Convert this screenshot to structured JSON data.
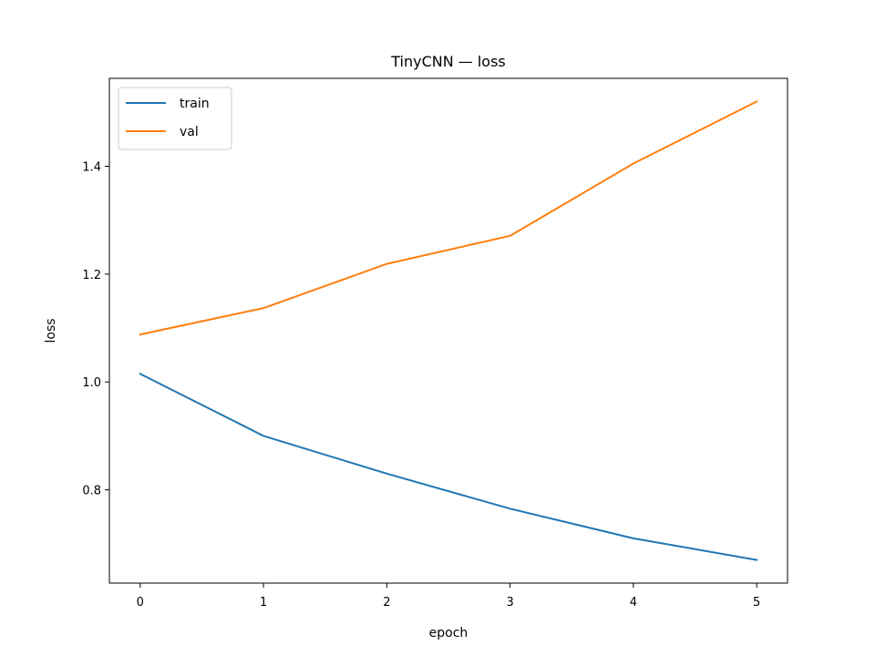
{
  "chart_data": {
    "type": "line",
    "title": "TinyCNN — loss",
    "xlabel": "epoch",
    "ylabel": "loss",
    "x": [
      0,
      1,
      2,
      3,
      4,
      5
    ],
    "xticks": [
      "0",
      "1",
      "2",
      "3",
      "4",
      "5"
    ],
    "yticks": [
      "0.8",
      "1.0",
      "1.2",
      "1.4"
    ],
    "xlim": [
      -0.25,
      5.25
    ],
    "ylim": [
      0.627,
      1.563
    ],
    "grid": false,
    "legend_position": "upper-left",
    "series": [
      {
        "name": "train",
        "color": "#1f77b4",
        "values": [
          1.015,
          0.9,
          0.83,
          0.765,
          0.71,
          0.67
        ]
      },
      {
        "name": "val",
        "color": "#ff7f0e",
        "values": [
          1.088,
          1.137,
          1.219,
          1.271,
          1.405,
          1.52
        ]
      }
    ]
  }
}
